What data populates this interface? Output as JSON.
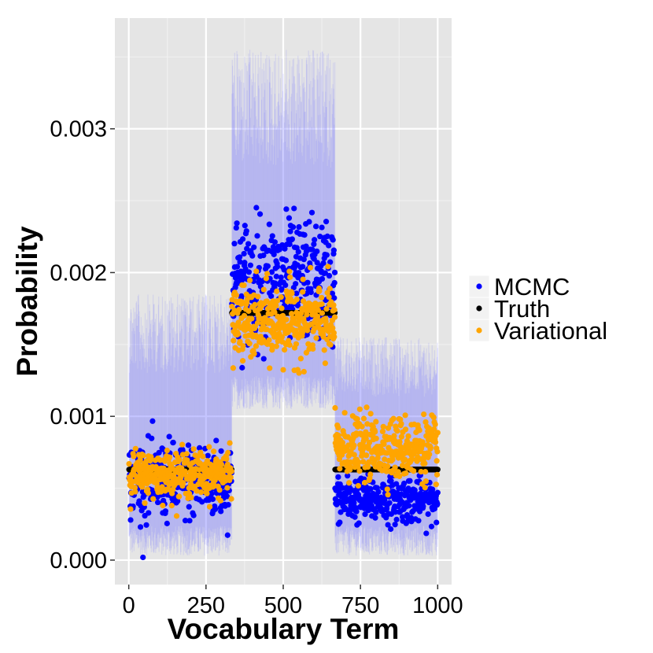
{
  "chart_data": {
    "type": "scatter",
    "title": "",
    "xlabel": "Vocabulary Term",
    "ylabel": "Probability",
    "xlim": [
      -45,
      1045
    ],
    "ylim": [
      -0.00017,
      0.00377
    ],
    "x_ticks": [
      0,
      250,
      500,
      750,
      1000
    ],
    "x_tick_labels": [
      "0",
      "250",
      "500",
      "750",
      "1000"
    ],
    "y_ticks": [
      0.0,
      0.001,
      0.002,
      0.003
    ],
    "y_tick_labels": [
      "0.000",
      "0.001",
      "0.002",
      "0.003"
    ],
    "grid": true,
    "background_color": "#e5e5e5",
    "legend_position": "right",
    "n_terms": 1000,
    "segments": [
      {
        "x_range": [
          1,
          333
        ],
        "truth": 0.00063,
        "mcmc_mean": 0.00055,
        "mcmc_spread": 0.00022,
        "variational_mean": 0.0006,
        "variational_spread": 0.00013,
        "interval_low": 3e-05,
        "interval_high": 0.00185
      },
      {
        "x_range": [
          334,
          667
        ],
        "truth": 0.00172,
        "mcmc_mean": 0.00195,
        "mcmc_spread": 0.00035,
        "variational_mean": 0.00165,
        "variational_spread": 0.00022,
        "interval_low": 0.00105,
        "interval_high": 0.00355
      },
      {
        "x_range": [
          668,
          1000
        ],
        "truth": 0.00063,
        "mcmc_mean": 0.00042,
        "mcmc_spread": 0.00013,
        "variational_mean": 0.00078,
        "variational_spread": 0.00018,
        "interval_low": 3e-05,
        "interval_high": 0.00155
      }
    ],
    "series": [
      {
        "name": "MCMC",
        "color": "#0000ff",
        "mark": "point"
      },
      {
        "name": "Truth",
        "color": "#000000",
        "mark": "point"
      },
      {
        "name": "Variational",
        "color": "#ffa500",
        "mark": "point"
      }
    ],
    "interval_band_color": "#8080ff"
  }
}
